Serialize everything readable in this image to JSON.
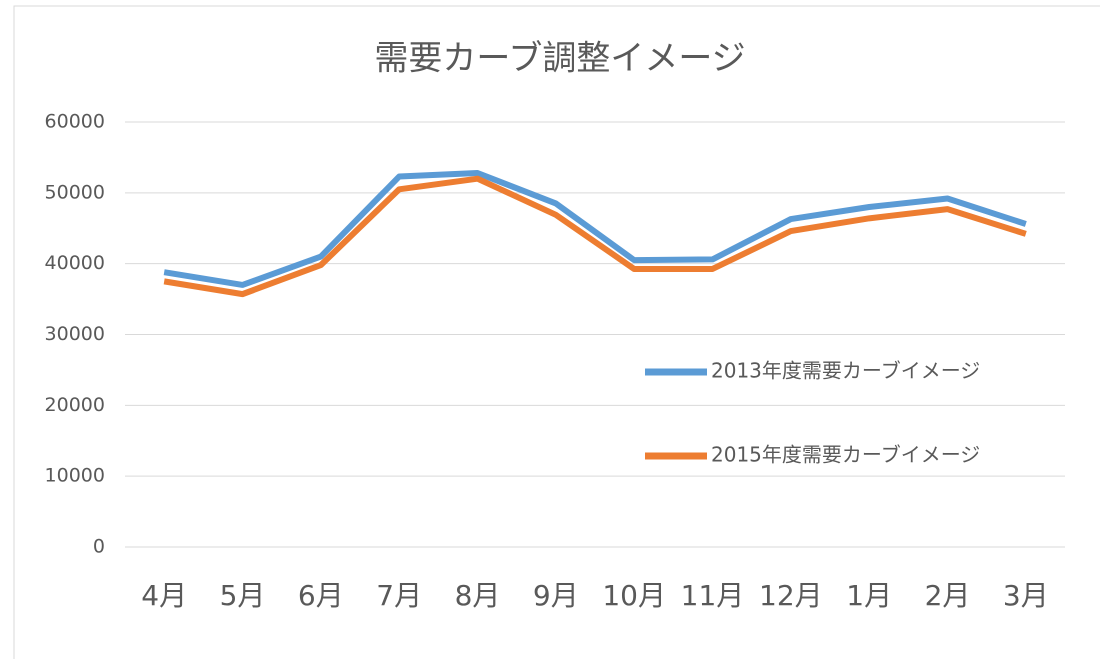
{
  "chart_data": {
    "type": "line",
    "title": "需要カーブ調整イメージ",
    "categories": [
      "4月",
      "5月",
      "6月",
      "7月",
      "8月",
      "9月",
      "10月",
      "11月",
      "12月",
      "1月",
      "2月",
      "3月"
    ],
    "series": [
      {
        "name": "2013年度需要カーブイメージ",
        "color": "#5b9bd5",
        "values": [
          38800,
          37000,
          41000,
          52300,
          52800,
          48500,
          40500,
          40600,
          46300,
          48000,
          49200,
          45600
        ]
      },
      {
        "name": "2015年度需要カーブイメージ",
        "color": "#ed7d31",
        "values": [
          37500,
          35700,
          39800,
          50500,
          52000,
          46900,
          39250,
          39250,
          44600,
          46400,
          47700,
          44200
        ]
      }
    ],
    "ylim": [
      0,
      60000
    ],
    "yticks": [
      0,
      10000,
      20000,
      30000,
      40000,
      50000,
      60000
    ],
    "grid": true,
    "legend": "right"
  }
}
